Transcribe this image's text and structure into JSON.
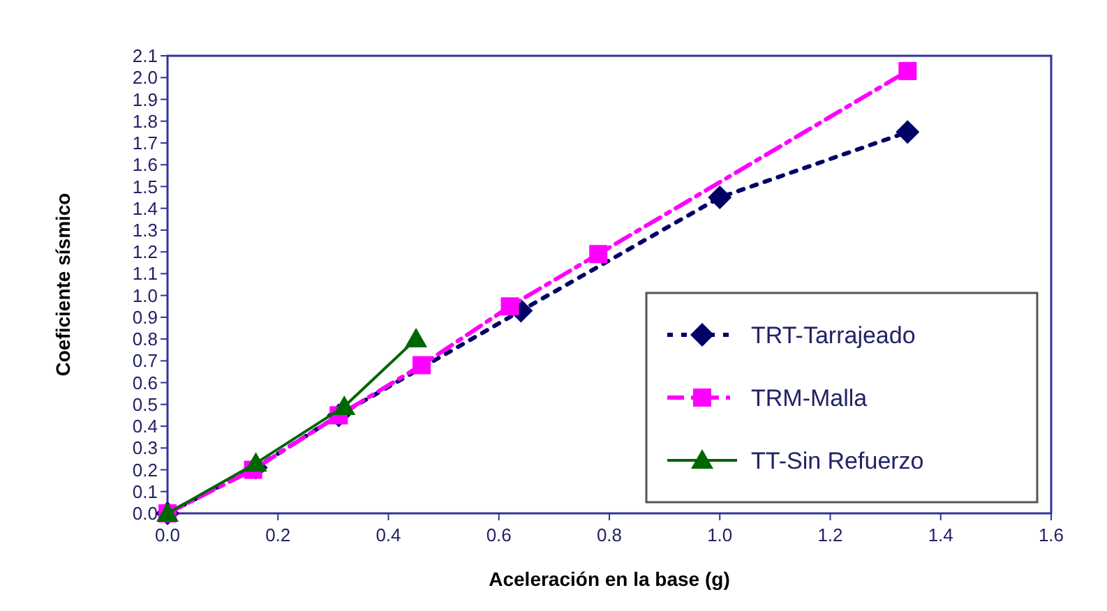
{
  "chart_data": {
    "type": "line",
    "xlabel": "Aceleración en la base (g)",
    "ylabel": "Coeficiente sísmico",
    "xlim": [
      0,
      1.6
    ],
    "xticks": [
      {
        "value": 0,
        "label": "0.0"
      },
      0.2,
      0.4,
      0.6,
      0.8,
      {
        "value": 1,
        "label": "1.0"
      },
      1.2,
      1.4,
      1.6
    ],
    "ylim": [
      0,
      2.1
    ],
    "yticks": [
      {
        "value": 0,
        "label": "0.0"
      },
      0.1,
      0.2,
      0.3,
      0.4,
      0.5,
      0.6,
      0.7,
      0.8,
      0.9,
      {
        "value": 1,
        "label": "1.0"
      },
      1.1,
      1.2,
      1.3,
      1.4,
      1.5,
      1.6,
      1.7,
      1.8,
      1.9,
      {
        "value": 2,
        "label": "2.0"
      },
      2.1
    ],
    "grid": false,
    "legend": "bottom right",
    "series": [
      {
        "name": "TRT-Tarrajeado",
        "color": "#000066",
        "marker": "diamond",
        "line_style": "dotted",
        "x": [
          0,
          0.16,
          0.31,
          0.64,
          1.0,
          1.34
        ],
        "values": [
          0,
          0.21,
          0.45,
          0.93,
          1.45,
          1.75
        ]
      },
      {
        "name": "TRM-Malla",
        "color": "#ff00ff",
        "marker": "square",
        "line_style": "dashed",
        "x": [
          0,
          0.155,
          0.31,
          0.46,
          0.62,
          0.78,
          1.34
        ],
        "values": [
          0,
          0.2,
          0.45,
          0.68,
          0.95,
          1.19,
          2.03
        ]
      },
      {
        "name": "TT-Sin Refuerzo",
        "color": "#006600",
        "marker": "triangle",
        "line_style": "solid",
        "x": [
          0,
          0.16,
          0.32,
          0.45
        ],
        "values": [
          0,
          0.23,
          0.49,
          0.8
        ]
      }
    ]
  }
}
